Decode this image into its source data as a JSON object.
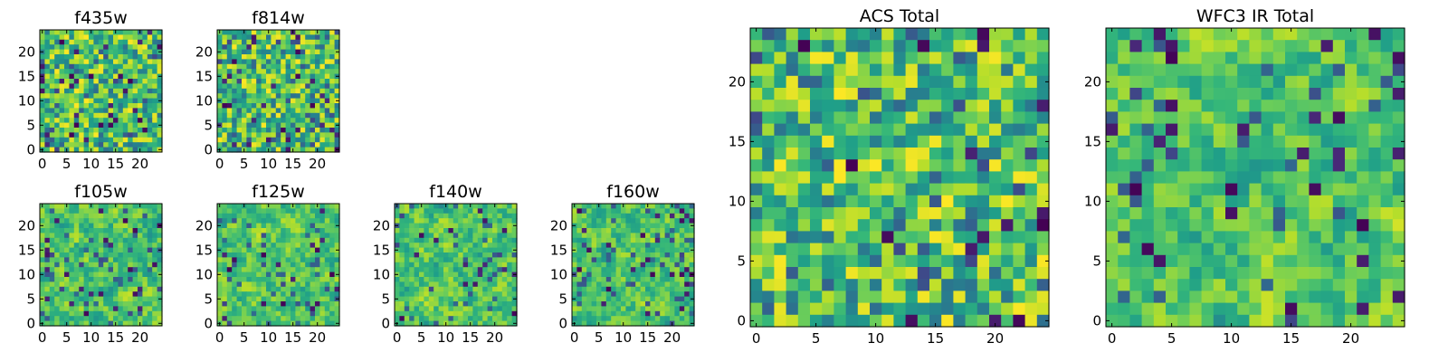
{
  "figure": {
    "colormap": "viridis",
    "panel_titles": [
      "f435w",
      "f814w",
      "f105w",
      "f125w",
      "f140w",
      "f160w",
      "ACS Total",
      "WFC3 IR Total"
    ]
  },
  "chart_data": [
    {
      "type": "heatmap",
      "title": "f435w",
      "grid_size": 25,
      "x_ticks": [
        "0",
        "5",
        "10",
        "15",
        "20"
      ],
      "y_ticks": [
        "0",
        "5",
        "10",
        "15",
        "20"
      ],
      "xlim": [
        -0.5,
        24.5
      ],
      "ylim": [
        -0.5,
        24.5
      ],
      "values_note_seed": 1,
      "seed": 101,
      "smooth": 0,
      "texture": "fine noise"
    },
    {
      "type": "heatmap",
      "title": "f814w",
      "grid_size": 25,
      "x_ticks": [
        "0",
        "5",
        "10",
        "15",
        "20"
      ],
      "y_ticks": [
        "0",
        "5",
        "10",
        "15",
        "20"
      ],
      "xlim": [
        -0.5,
        24.5
      ],
      "ylim": [
        -0.5,
        24.5
      ],
      "seed": 202,
      "smooth": 0
    },
    {
      "type": "heatmap",
      "title": "f105w",
      "grid_size": 25,
      "x_ticks": [
        "0",
        "5",
        "10",
        "15",
        "20"
      ],
      "y_ticks": [
        "0",
        "5",
        "10",
        "15",
        "20"
      ],
      "xlim": [
        -0.5,
        24.5
      ],
      "ylim": [
        -0.5,
        24.5
      ],
      "seed": 303,
      "smooth": 1
    },
    {
      "type": "heatmap",
      "title": "f125w",
      "grid_size": 25,
      "x_ticks": [
        "0",
        "5",
        "10",
        "15",
        "20"
      ],
      "y_ticks": [
        "0",
        "5",
        "10",
        "15",
        "20"
      ],
      "xlim": [
        -0.5,
        24.5
      ],
      "ylim": [
        -0.5,
        24.5
      ],
      "seed": 404,
      "smooth": 1
    },
    {
      "type": "heatmap",
      "title": "f140w",
      "grid_size": 25,
      "x_ticks": [
        "0",
        "5",
        "10",
        "15",
        "20"
      ],
      "y_ticks": [
        "0",
        "5",
        "10",
        "15",
        "20"
      ],
      "xlim": [
        -0.5,
        24.5
      ],
      "ylim": [
        -0.5,
        24.5
      ],
      "seed": 505,
      "smooth": 1
    },
    {
      "type": "heatmap",
      "title": "f160w",
      "grid_size": 25,
      "x_ticks": [
        "0",
        "5",
        "10",
        "15",
        "20"
      ],
      "y_ticks": [
        "0",
        "5",
        "10",
        "15",
        "20"
      ],
      "xlim": [
        -0.5,
        24.5
      ],
      "ylim": [
        -0.5,
        24.5
      ],
      "seed": 606,
      "smooth": 1
    },
    {
      "type": "heatmap",
      "title": "ACS Total",
      "grid_size": 25,
      "x_ticks": [
        "0",
        "5",
        "10",
        "15",
        "20"
      ],
      "y_ticks": [
        "0",
        "5",
        "10",
        "15",
        "20"
      ],
      "xlim": [
        -0.5,
        24.5
      ],
      "ylim": [
        -0.5,
        24.5
      ],
      "seed": 707,
      "smooth": 0
    },
    {
      "type": "heatmap",
      "title": "WFC3 IR Total",
      "grid_size": 25,
      "x_ticks": [
        "0",
        "5",
        "10",
        "15",
        "20"
      ],
      "y_ticks": [
        "0",
        "5",
        "10",
        "15",
        "20"
      ],
      "xlim": [
        -0.5,
        24.5
      ],
      "ylim": [
        -0.5,
        24.5
      ],
      "seed": 808,
      "smooth": 1
    }
  ]
}
